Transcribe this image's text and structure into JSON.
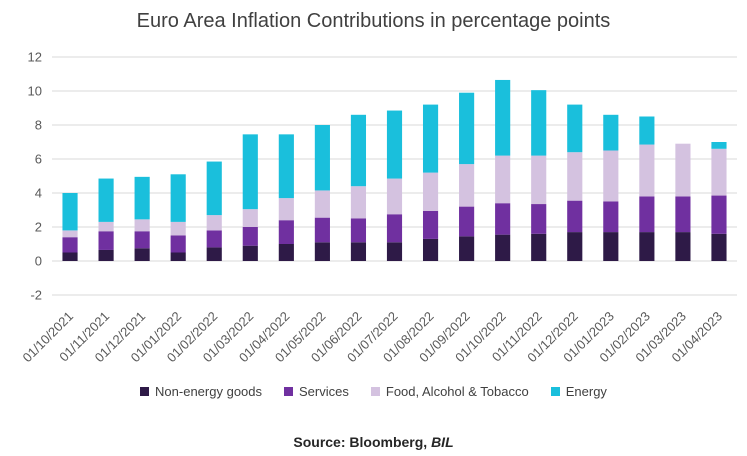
{
  "chart_data": {
    "type": "bar",
    "stacked": true,
    "title": "Euro Area Inflation Contributions in percentage points",
    "xlabel": "",
    "ylabel": "",
    "ylim": [
      -2,
      12
    ],
    "yticks": [
      -2,
      0,
      2,
      4,
      6,
      8,
      10,
      12
    ],
    "grid": true,
    "legend_position": "bottom",
    "categories": [
      "01/10/2021",
      "01/11/2021",
      "01/12/2021",
      "01/01/2022",
      "01/02/2022",
      "01/03/2022",
      "01/04/2022",
      "01/05/2022",
      "01/06/2022",
      "01/07/2022",
      "01/08/2022",
      "01/09/2022",
      "01/10/2022",
      "01/11/2022",
      "01/12/2022",
      "01/01/2023",
      "01/02/2023",
      "01/03/2023",
      "01/04/2023"
    ],
    "series": [
      {
        "name": "Non-energy goods",
        "color": "#2e1a47",
        "values": [
          0.5,
          0.65,
          0.75,
          0.5,
          0.8,
          0.9,
          1.0,
          1.1,
          1.1,
          1.1,
          1.3,
          1.45,
          1.55,
          1.6,
          1.7,
          1.7,
          1.7,
          1.7,
          1.6
        ]
      },
      {
        "name": "Services",
        "color": "#7030a0",
        "values": [
          0.9,
          1.1,
          1.0,
          1.0,
          1.0,
          1.1,
          1.4,
          1.45,
          1.4,
          1.65,
          1.65,
          1.75,
          1.85,
          1.75,
          1.85,
          1.8,
          2.1,
          2.1,
          2.25
        ]
      },
      {
        "name": "Food, Alcohol & Tobacco",
        "color": "#d4c2e0",
        "values": [
          0.4,
          0.55,
          0.7,
          0.8,
          0.9,
          1.05,
          1.3,
          1.6,
          1.9,
          2.1,
          2.25,
          2.5,
          2.8,
          2.85,
          2.85,
          3.0,
          3.05,
          3.1,
          2.75
        ]
      },
      {
        "name": "Energy",
        "color": "#1abfdc",
        "values": [
          2.2,
          2.55,
          2.5,
          2.8,
          3.15,
          4.4,
          3.75,
          3.85,
          4.2,
          4.0,
          4.0,
          4.2,
          4.45,
          3.85,
          2.8,
          2.1,
          1.65,
          0.0,
          0.4
        ]
      }
    ]
  },
  "source": {
    "prefix": "Source: Bloomberg, ",
    "suffix": "BIL"
  }
}
